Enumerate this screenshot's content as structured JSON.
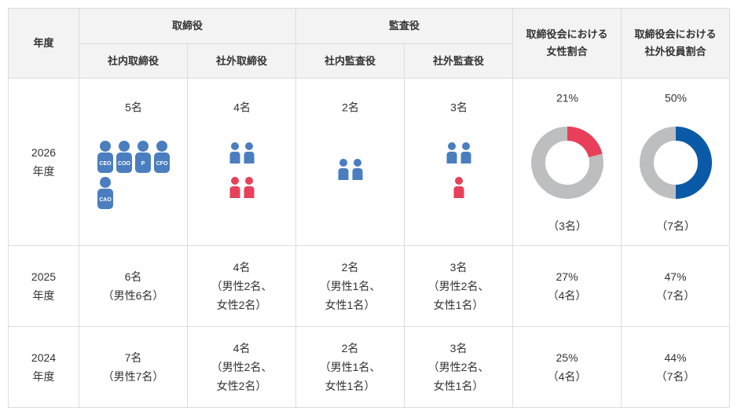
{
  "header": {
    "year": "年度",
    "directors": "取締役",
    "auditors": "監査役",
    "inside_directors": "社内取締役",
    "outside_directors": "社外取締役",
    "inside_auditors": "社内監査役",
    "outside_auditors": "社外監査役",
    "women_ratio": [
      "取締役会における",
      "女性割合"
    ],
    "outside_ratio": [
      "取締役会における",
      "社外役員割合"
    ]
  },
  "colors": {
    "male": "#4a7ebf",
    "female": "#e8405a",
    "rest": "#bdbec0",
    "women_ratio": "#e8405a",
    "outside_ratio": "#0b5aa8"
  },
  "rows": [
    {
      "year": [
        "2026",
        "年度"
      ],
      "cells": [
        {
          "count": "5名",
          "icons": [
            "CEO",
            "COO",
            "P",
            "CFO",
            "CAO"
          ]
        },
        {
          "count": "4名",
          "men": 2,
          "women": 2
        },
        {
          "count": "2名",
          "men": 2,
          "women": 0
        },
        {
          "count": "3名",
          "men": 2,
          "women": 1
        },
        {
          "label": "21%",
          "value": 21,
          "detail": "（3名）",
          "color_key": "women_ratio"
        },
        {
          "label": "50%",
          "value": 50,
          "detail": "（7名）",
          "color_key": "outside_ratio"
        }
      ]
    },
    {
      "year": [
        "2025",
        "年度"
      ],
      "cells": [
        [
          "6名",
          "（男性6名）"
        ],
        [
          "4名",
          "（男性2名、",
          "女性2名）"
        ],
        [
          "2名",
          "（男性1名、",
          "女性1名）"
        ],
        [
          "3名",
          "（男性2名、",
          "女性1名）"
        ],
        [
          "27%",
          "（4名）"
        ],
        [
          "47%",
          "（7名）"
        ]
      ]
    },
    {
      "year": [
        "2024",
        "年度"
      ],
      "cells": [
        [
          "7名",
          "（男性7名）"
        ],
        [
          "4名",
          "（男性2名、",
          "女性2名）"
        ],
        [
          "2名",
          "（男性1名、",
          "女性1名）"
        ],
        [
          "3名",
          "（男性2名、",
          "女性1名）"
        ],
        [
          "25%",
          "（4名）"
        ],
        [
          "44%",
          "（7名）"
        ]
      ]
    }
  ]
}
